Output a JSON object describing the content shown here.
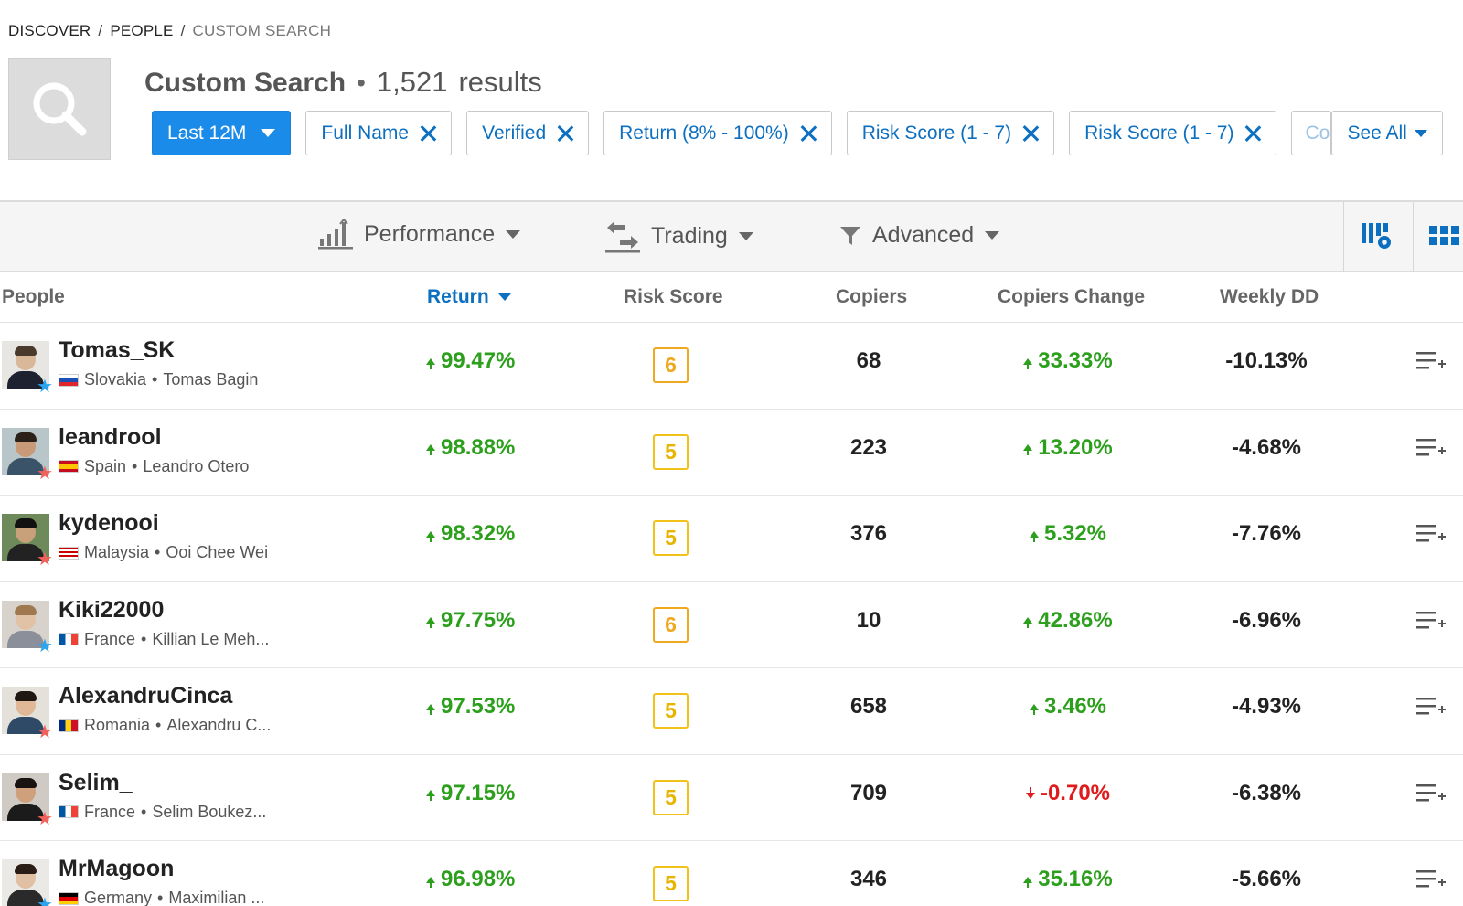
{
  "breadcrumb": {
    "items": [
      "DISCOVER",
      "PEOPLE"
    ],
    "current": "CUSTOM SEARCH",
    "separator": "/"
  },
  "header": {
    "title": "Custom Search",
    "dot": "•",
    "results_count": "1,521",
    "results_word": "results"
  },
  "filters": {
    "period": "Last 12M",
    "chips": [
      "Full Name",
      "Verified",
      "Return (8% - 100%)",
      "Risk Score (1 - 7)",
      "Risk Score (1 - 7)"
    ],
    "partial_chip": "Co",
    "see_all": "See All"
  },
  "toolbar": {
    "performance": "Performance",
    "trading": "Trading",
    "advanced": "Advanced"
  },
  "table": {
    "columns": {
      "people": "People",
      "return": "Return",
      "risk": "Risk Score",
      "copiers": "Copiers",
      "copiers_change": "Copiers Change",
      "weekly_dd": "Weekly DD"
    },
    "rows": [
      {
        "username": "Tomas_SK",
        "country": "Slovakia",
        "bullet": "•",
        "full_name": "Tomas Bagin",
        "return": "99.47%",
        "risk": "6",
        "copiers": "68",
        "copiers_change": "33.33%",
        "weekly_dd": "-10.13%"
      },
      {
        "username": "leandrool",
        "country": "Spain",
        "bullet": "•",
        "full_name": "Leandro Otero",
        "return": "98.88%",
        "risk": "5",
        "copiers": "223",
        "copiers_change": "13.20%",
        "weekly_dd": "-4.68%"
      },
      {
        "username": "kydenooi",
        "country": "Malaysia",
        "bullet": "•",
        "full_name": "Ooi Chee Wei",
        "return": "98.32%",
        "risk": "5",
        "copiers": "376",
        "copiers_change": "5.32%",
        "weekly_dd": "-7.76%"
      },
      {
        "username": "Kiki22000",
        "country": "France",
        "bullet": "•",
        "full_name": "Killian Le Meh...",
        "return": "97.75%",
        "risk": "6",
        "copiers": "10",
        "copiers_change": "42.86%",
        "weekly_dd": "-6.96%"
      },
      {
        "username": "AlexandruCinca",
        "country": "Romania",
        "bullet": "•",
        "full_name": "Alexandru C...",
        "return": "97.53%",
        "risk": "5",
        "copiers": "658",
        "copiers_change": "3.46%",
        "weekly_dd": "-4.93%"
      },
      {
        "username": "Selim_",
        "country": "France",
        "bullet": "•",
        "full_name": "Selim Boukez...",
        "return": "97.15%",
        "risk": "5",
        "copiers": "709",
        "copiers_change": "-0.70%",
        "weekly_dd": "-6.38%"
      },
      {
        "username": "MrMagoon",
        "country": "Germany",
        "bullet": "•",
        "full_name": "Maximilian ...",
        "return": "96.98%",
        "risk": "5",
        "copiers": "346",
        "copiers_change": "35.16%",
        "weekly_dd": "-5.66%"
      }
    ]
  },
  "colors": {
    "accent": "#0c6fc0",
    "primary_button": "#1a8be8",
    "positive": "#2ca01c",
    "negative": "#e01b1b",
    "risk_border": "#f2c218"
  },
  "icons": [
    "magnifier-icon",
    "caret-down-icon",
    "close-icon",
    "bar-chart-icon",
    "swap-arrows-icon",
    "filter-funnel-icon",
    "column-settings-icon",
    "grid-view-icon",
    "star-icon",
    "flag-icon",
    "add-to-watchlist-icon"
  ]
}
